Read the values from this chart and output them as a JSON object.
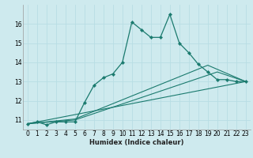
{
  "xlabel": "Humidex (Indice chaleur)",
  "bg_color": "#ceeaee",
  "line_color": "#1a7a6e",
  "grid_color": "#b8dde4",
  "xlim": [
    -0.5,
    23.5
  ],
  "ylim": [
    10.5,
    17.0
  ],
  "yticks": [
    11,
    12,
    13,
    14,
    15,
    16
  ],
  "xticks": [
    0,
    1,
    2,
    3,
    4,
    5,
    6,
    7,
    8,
    9,
    10,
    11,
    12,
    13,
    14,
    15,
    16,
    17,
    18,
    19,
    20,
    21,
    22,
    23
  ],
  "main_line": {
    "x": [
      0,
      1,
      2,
      3,
      4,
      5,
      6,
      7,
      8,
      9,
      10,
      11,
      12,
      13,
      14,
      15,
      16,
      17,
      18,
      19,
      20,
      21,
      22,
      23
    ],
    "y": [
      10.8,
      10.9,
      10.75,
      10.9,
      10.9,
      10.9,
      11.9,
      12.8,
      13.2,
      13.4,
      14.0,
      16.1,
      15.7,
      15.3,
      15.3,
      16.5,
      15.0,
      14.5,
      13.9,
      13.5,
      13.1,
      13.1,
      13.0,
      13.0
    ]
  },
  "fan_lines": [
    {
      "x": [
        0,
        23
      ],
      "y": [
        10.8,
        13.0
      ]
    },
    {
      "x": [
        0,
        5,
        20,
        23
      ],
      "y": [
        10.8,
        11.0,
        13.5,
        13.0
      ]
    },
    {
      "x": [
        0,
        5,
        19,
        23
      ],
      "y": [
        10.8,
        11.05,
        13.85,
        13.0
      ]
    }
  ]
}
